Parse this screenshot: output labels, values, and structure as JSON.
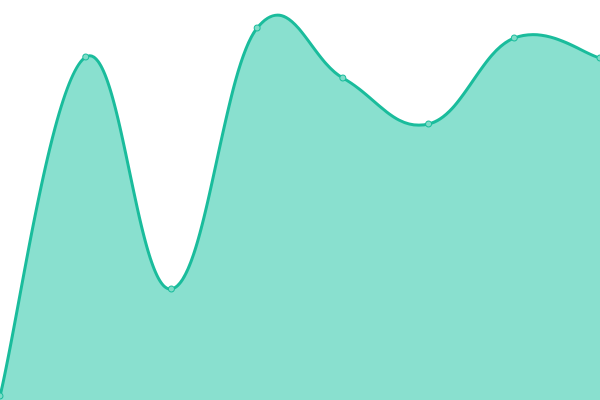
{
  "chart_data": {
    "type": "area",
    "x": [
      1,
      2,
      3,
      4,
      5,
      6,
      7,
      8
    ],
    "values": [
      4,
      343,
      111,
      372,
      322,
      276,
      362,
      342
    ],
    "ylim": [
      0,
      400
    ],
    "grid": false,
    "smooth": true,
    "markers": true,
    "colors": {
      "line": "#1abc9c",
      "fill": "#89e0cf",
      "marker": "#7fdcc8"
    }
  }
}
